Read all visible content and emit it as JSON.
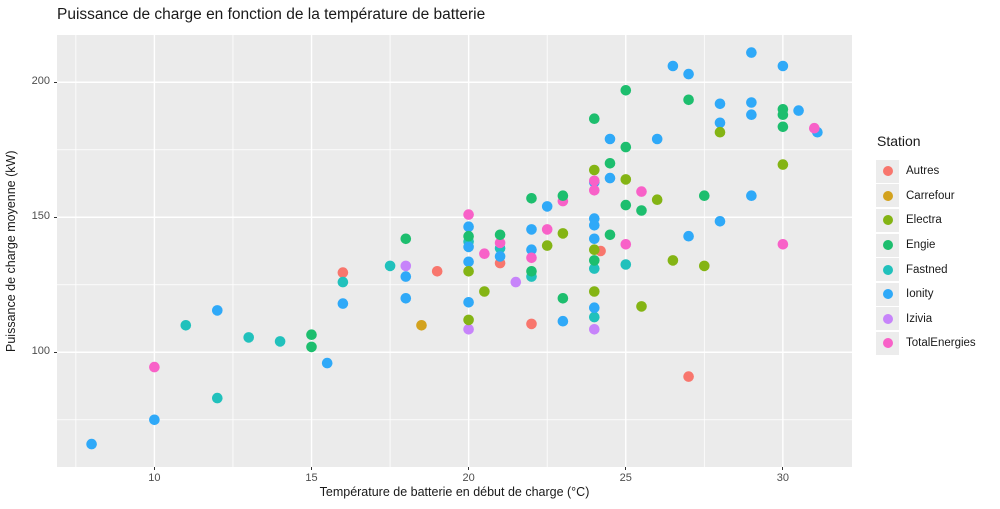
{
  "title": "Puissance de charge en fonction de la température de batterie",
  "chart_data": {
    "type": "scatter",
    "title": "Puissance de charge en fonction de la température de batterie",
    "xlabel": "Température de batterie en début de charge (°C)",
    "ylabel": "Puissance de charge moyenne (kW)",
    "legend_title": "Station",
    "legend_position": "right",
    "grid": true,
    "panel_bg": "#ebebeb",
    "grid_color": "#ffffff",
    "xlim": [
      6.9,
      32.2
    ],
    "ylim": [
      57.5,
      217.5
    ],
    "x_ticks": [
      10,
      15,
      20,
      25,
      30
    ],
    "y_ticks": [
      100,
      150,
      200
    ],
    "x_minor_ticks": [
      7.5,
      12.5,
      17.5,
      22.5,
      27.5
    ],
    "y_minor_ticks": [
      75,
      125,
      175
    ],
    "point_radius": 5.3,
    "draw_order": [
      "Izivia",
      "Carrefour",
      "Autres",
      "Fastned",
      "Ionity",
      "TotalEnergies",
      "Electra",
      "Engie"
    ],
    "series": [
      {
        "name": "Autres",
        "color": "#F8766D",
        "points": [
          [
            16,
            129.5
          ],
          [
            19,
            130
          ],
          [
            21,
            133
          ],
          [
            22,
            110.5
          ],
          [
            24.2,
            137.5
          ],
          [
            27,
            91
          ]
        ]
      },
      {
        "name": "Carrefour",
        "color": "#D3A21E",
        "points": [
          [
            18.5,
            110
          ]
        ]
      },
      {
        "name": "Electra",
        "color": "#84B414",
        "points": [
          [
            20,
            130
          ],
          [
            20,
            112
          ],
          [
            20.5,
            122.5
          ],
          [
            22.5,
            139.5
          ],
          [
            23,
            144
          ],
          [
            24,
            167.5
          ],
          [
            24,
            138
          ],
          [
            24,
            122.5
          ],
          [
            25,
            164
          ],
          [
            25.5,
            117
          ],
          [
            26,
            156.5
          ],
          [
            26.5,
            134
          ],
          [
            27.5,
            132
          ],
          [
            28,
            181.5
          ],
          [
            30,
            169.5
          ]
        ]
      },
      {
        "name": "Engie",
        "color": "#1DBE6E",
        "points": [
          [
            15,
            106.5
          ],
          [
            15,
            102
          ],
          [
            18,
            142
          ],
          [
            20,
            143
          ],
          [
            21,
            143.5
          ],
          [
            22,
            157
          ],
          [
            22,
            130
          ],
          [
            23,
            158
          ],
          [
            23,
            120
          ],
          [
            24,
            186.5
          ],
          [
            24,
            134
          ],
          [
            24.5,
            170
          ],
          [
            24.5,
            143.5
          ],
          [
            25,
            197
          ],
          [
            25,
            176
          ],
          [
            25,
            154.5
          ],
          [
            25.5,
            152.5
          ],
          [
            27,
            193.5
          ],
          [
            27.5,
            158
          ],
          [
            30,
            190
          ],
          [
            30,
            188
          ],
          [
            30,
            183.5
          ]
        ]
      },
      {
        "name": "Fastned",
        "color": "#21C1BC",
        "points": [
          [
            11,
            110
          ],
          [
            12,
            83
          ],
          [
            13,
            105.5
          ],
          [
            14,
            104
          ],
          [
            16,
            126
          ],
          [
            17.5,
            132
          ],
          [
            20,
            141
          ],
          [
            21,
            138.5
          ],
          [
            22,
            128
          ],
          [
            24,
            131
          ],
          [
            24,
            113
          ],
          [
            25,
            132.5
          ]
        ]
      },
      {
        "name": "Ionity",
        "color": "#2FA9F8",
        "points": [
          [
            8,
            66
          ],
          [
            10,
            75
          ],
          [
            12,
            115.5
          ],
          [
            15.5,
            96
          ],
          [
            16,
            118
          ],
          [
            18,
            128
          ],
          [
            18,
            120
          ],
          [
            20,
            146.5
          ],
          [
            20,
            139
          ],
          [
            20,
            133.5
          ],
          [
            20,
            118.5
          ],
          [
            21,
            135.5
          ],
          [
            22,
            145.5
          ],
          [
            22,
            138
          ],
          [
            22.5,
            154
          ],
          [
            23,
            111.5
          ],
          [
            24,
            163
          ],
          [
            24,
            149.5
          ],
          [
            24,
            147
          ],
          [
            24,
            142
          ],
          [
            24,
            116.5
          ],
          [
            24.5,
            179
          ],
          [
            24.5,
            164.5
          ],
          [
            26,
            179
          ],
          [
            26.5,
            206
          ],
          [
            27,
            203
          ],
          [
            27,
            143
          ],
          [
            28,
            192
          ],
          [
            28,
            185
          ],
          [
            28,
            148.5
          ],
          [
            29,
            211
          ],
          [
            29,
            192.5
          ],
          [
            29,
            188
          ],
          [
            29,
            158
          ],
          [
            30,
            206
          ],
          [
            30.5,
            189.5
          ],
          [
            31.1,
            181.5
          ]
        ]
      },
      {
        "name": "Izivia",
        "color": "#C784FA",
        "points": [
          [
            18,
            132
          ],
          [
            20,
            108.5
          ],
          [
            21.5,
            126
          ],
          [
            24,
            108.5
          ]
        ]
      },
      {
        "name": "TotalEnergies",
        "color": "#F861C8",
        "points": [
          [
            10,
            94.5
          ],
          [
            20,
            151
          ],
          [
            20.5,
            136.5
          ],
          [
            21,
            140.5
          ],
          [
            22,
            135
          ],
          [
            22.5,
            145.5
          ],
          [
            23,
            156
          ],
          [
            24,
            163.5
          ],
          [
            24,
            160
          ],
          [
            25,
            140
          ],
          [
            25.5,
            159.5
          ],
          [
            30,
            140
          ],
          [
            31,
            183
          ]
        ]
      }
    ]
  }
}
